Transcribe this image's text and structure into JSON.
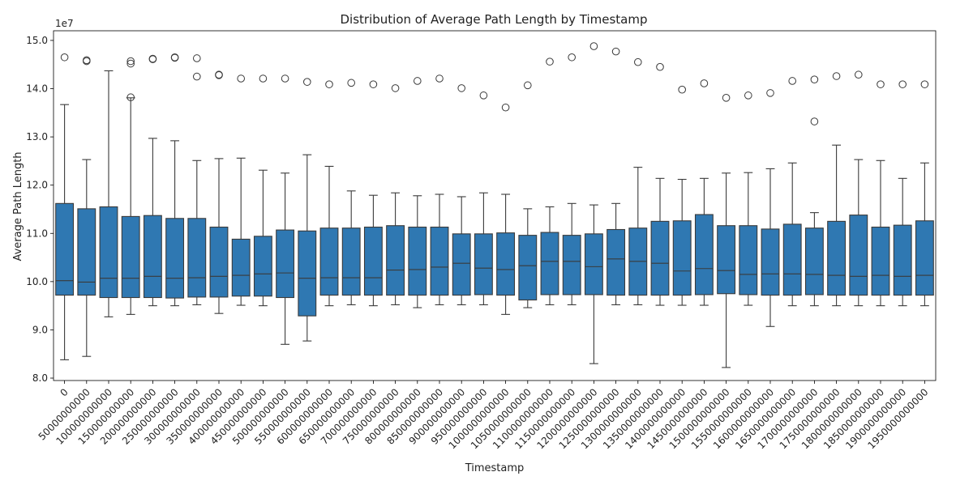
{
  "chart_data": {
    "type": "boxplot",
    "title": "Distribution of Average Path Length by Timestamp",
    "xlabel": "Timestamp",
    "ylabel": "Average Path Length",
    "y_offset_label": "1e7",
    "ylim": [
      7.95,
      15.2
    ],
    "yticks": [
      8.0,
      9.0,
      10.0,
      11.0,
      12.0,
      13.0,
      14.0,
      15.0
    ],
    "ytick_labels": [
      "8.0",
      "9.0",
      "10.0",
      "11.0",
      "12.0",
      "13.0",
      "14.0",
      "15.0"
    ],
    "y_units_note": "values in units of 1e6 (axis prints 1e7 offset with ticks x 1e7)",
    "box_color": "#2f78b2",
    "line_color": "#3a3a3a",
    "categories": [
      "0",
      "50000000000",
      "100000000000",
      "150000000000",
      "200000000000",
      "250000000000",
      "300000000000",
      "350000000000",
      "400000000000",
      "450000000000",
      "500000000000",
      "550000000000",
      "600000000000",
      "650000000000",
      "700000000000",
      "750000000000",
      "800000000000",
      "850000000000",
      "900000000000",
      "950000000000",
      "1000000000000",
      "1050000000000",
      "1100000000000",
      "1150000000000",
      "1200000000000",
      "1250000000000",
      "1300000000000",
      "1350000000000",
      "1400000000000",
      "1450000000000",
      "1500000000000",
      "1550000000000",
      "1600000000000",
      "1650000000000",
      "1700000000000",
      "1750000000000",
      "1800000000000",
      "1850000000000",
      "1900000000000",
      "1950000000000"
    ],
    "xtick_labels": [
      "0",
      "50000000000",
      "100000000000",
      "150000000000",
      "200000000000",
      "250000000000",
      "300000000000",
      "350000000000",
      "400000000000",
      "450000000000",
      "500000000000",
      "550000000000",
      "600000000000",
      "650000000000",
      "700000000000",
      "750000000000",
      "800000000000",
      "850000000000",
      "900000000000",
      "950000000000",
      "1000000000000",
      "1050000000000",
      "1100000000000",
      "1150000000000",
      "1200000000000",
      "1250000000000",
      "1300000000000",
      "1350000000000",
      "1400000000000",
      "1450000000000",
      "1500000000000",
      "1550000000000",
      "1600000000000",
      "1650000000000",
      "1700000000000",
      "1750000000000",
      "1800000000000",
      "1850000000000",
      "1900000000000",
      "1950000000000"
    ],
    "boxes": [
      {
        "wl": 8.38,
        "q1": 9.72,
        "med": 10.02,
        "q3": 11.62,
        "wh": 13.67,
        "fl": [
          14.65
        ]
      },
      {
        "wl": 8.45,
        "q1": 9.72,
        "med": 9.99,
        "q3": 11.51,
        "wh": 12.53,
        "fl": [
          14.57,
          14.59
        ]
      },
      {
        "wl": 9.27,
        "q1": 9.67,
        "med": 10.07,
        "q3": 11.55,
        "wh": 14.37,
        "fl": []
      },
      {
        "wl": 9.32,
        "q1": 9.67,
        "med": 10.07,
        "q3": 11.35,
        "wh": 13.81,
        "fl": [
          14.52,
          14.57,
          13.82
        ]
      },
      {
        "wl": 9.5,
        "q1": 9.67,
        "med": 10.11,
        "q3": 11.37,
        "wh": 12.97,
        "fl": [
          14.61,
          14.62
        ]
      },
      {
        "wl": 9.5,
        "q1": 9.66,
        "med": 10.07,
        "q3": 11.31,
        "wh": 12.92,
        "fl": [
          14.64,
          14.65
        ]
      },
      {
        "wl": 9.52,
        "q1": 9.68,
        "med": 10.08,
        "q3": 11.31,
        "wh": 12.51,
        "fl": [
          14.63,
          14.25
        ]
      },
      {
        "wl": 9.34,
        "q1": 9.68,
        "med": 10.11,
        "q3": 11.13,
        "wh": 12.55,
        "fl": [
          14.28,
          14.29
        ]
      },
      {
        "wl": 9.51,
        "q1": 9.7,
        "med": 10.13,
        "q3": 10.88,
        "wh": 12.56,
        "fl": [
          14.21
        ]
      },
      {
        "wl": 9.5,
        "q1": 9.7,
        "med": 10.16,
        "q3": 10.94,
        "wh": 12.31,
        "fl": [
          14.21
        ]
      },
      {
        "wl": 8.7,
        "q1": 9.67,
        "med": 10.18,
        "q3": 11.07,
        "wh": 12.25,
        "fl": [
          14.21
        ]
      },
      {
        "wl": 8.77,
        "q1": 9.29,
        "med": 10.07,
        "q3": 11.05,
        "wh": 12.63,
        "fl": [
          14.14
        ]
      },
      {
        "wl": 9.5,
        "q1": 9.72,
        "med": 10.08,
        "q3": 11.11,
        "wh": 12.39,
        "fl": [
          14.09
        ]
      },
      {
        "wl": 9.52,
        "q1": 9.72,
        "med": 10.08,
        "q3": 11.11,
        "wh": 11.88,
        "fl": [
          14.12
        ]
      },
      {
        "wl": 9.5,
        "q1": 9.72,
        "med": 10.08,
        "q3": 11.13,
        "wh": 11.79,
        "fl": [
          14.09
        ]
      },
      {
        "wl": 9.52,
        "q1": 9.72,
        "med": 10.24,
        "q3": 11.16,
        "wh": 11.84,
        "fl": [
          14.01
        ]
      },
      {
        "wl": 9.46,
        "q1": 9.72,
        "med": 10.25,
        "q3": 11.13,
        "wh": 11.78,
        "fl": [
          14.16
        ]
      },
      {
        "wl": 9.52,
        "q1": 9.72,
        "med": 10.3,
        "q3": 11.13,
        "wh": 11.81,
        "fl": [
          14.21
        ]
      },
      {
        "wl": 9.52,
        "q1": 9.72,
        "med": 10.38,
        "q3": 10.99,
        "wh": 11.76,
        "fl": [
          14.01
        ]
      },
      {
        "wl": 9.52,
        "q1": 9.73,
        "med": 10.28,
        "q3": 10.99,
        "wh": 11.84,
        "fl": [
          13.86
        ]
      },
      {
        "wl": 9.32,
        "q1": 9.72,
        "med": 10.25,
        "q3": 11.01,
        "wh": 11.81,
        "fl": [
          13.61
        ]
      },
      {
        "wl": 9.46,
        "q1": 9.62,
        "med": 10.33,
        "q3": 10.96,
        "wh": 11.51,
        "fl": [
          14.07
        ]
      },
      {
        "wl": 9.52,
        "q1": 9.73,
        "med": 10.42,
        "q3": 11.02,
        "wh": 11.55,
        "fl": [
          14.56
        ]
      },
      {
        "wl": 9.52,
        "q1": 9.73,
        "med": 10.42,
        "q3": 10.96,
        "wh": 11.62,
        "fl": [
          14.65
        ]
      },
      {
        "wl": 8.3,
        "q1": 9.73,
        "med": 10.31,
        "q3": 10.99,
        "wh": 11.59,
        "fl": [
          14.88
        ]
      },
      {
        "wl": 9.52,
        "q1": 9.72,
        "med": 10.47,
        "q3": 11.08,
        "wh": 11.62,
        "fl": [
          14.77
        ]
      },
      {
        "wl": 9.52,
        "q1": 9.72,
        "med": 10.42,
        "q3": 11.11,
        "wh": 12.37,
        "fl": [
          14.55
        ]
      },
      {
        "wl": 9.51,
        "q1": 9.72,
        "med": 10.38,
        "q3": 11.25,
        "wh": 12.14,
        "fl": [
          14.45
        ]
      },
      {
        "wl": 9.51,
        "q1": 9.72,
        "med": 10.22,
        "q3": 11.26,
        "wh": 12.12,
        "fl": [
          13.98
        ]
      },
      {
        "wl": 9.51,
        "q1": 9.73,
        "med": 10.27,
        "q3": 11.39,
        "wh": 12.14,
        "fl": [
          14.11
        ]
      },
      {
        "wl": 8.22,
        "q1": 9.75,
        "med": 10.23,
        "q3": 11.16,
        "wh": 12.25,
        "fl": [
          13.81
        ]
      },
      {
        "wl": 9.51,
        "q1": 9.73,
        "med": 10.15,
        "q3": 11.16,
        "wh": 12.26,
        "fl": [
          13.86
        ]
      },
      {
        "wl": 9.07,
        "q1": 9.72,
        "med": 10.16,
        "q3": 11.09,
        "wh": 12.34,
        "fl": [
          13.91
        ]
      },
      {
        "wl": 9.5,
        "q1": 9.72,
        "med": 10.16,
        "q3": 11.19,
        "wh": 12.46,
        "fl": [
          14.16
        ]
      },
      {
        "wl": 9.5,
        "q1": 9.73,
        "med": 10.15,
        "q3": 11.11,
        "wh": 11.43,
        "fl": [
          14.19,
          13.32
        ]
      },
      {
        "wl": 9.5,
        "q1": 9.72,
        "med": 10.13,
        "q3": 11.25,
        "wh": 12.83,
        "fl": [
          14.26
        ]
      },
      {
        "wl": 9.5,
        "q1": 9.72,
        "med": 10.11,
        "q3": 11.38,
        "wh": 12.53,
        "fl": [
          14.29
        ]
      },
      {
        "wl": 9.5,
        "q1": 9.72,
        "med": 10.13,
        "q3": 11.13,
        "wh": 12.51,
        "fl": [
          14.09
        ]
      },
      {
        "wl": 9.5,
        "q1": 9.72,
        "med": 10.11,
        "q3": 11.17,
        "wh": 12.14,
        "fl": [
          14.09
        ]
      },
      {
        "wl": 9.5,
        "q1": 9.72,
        "med": 10.13,
        "q3": 11.26,
        "wh": 12.46,
        "fl": [
          14.09
        ]
      }
    ]
  }
}
